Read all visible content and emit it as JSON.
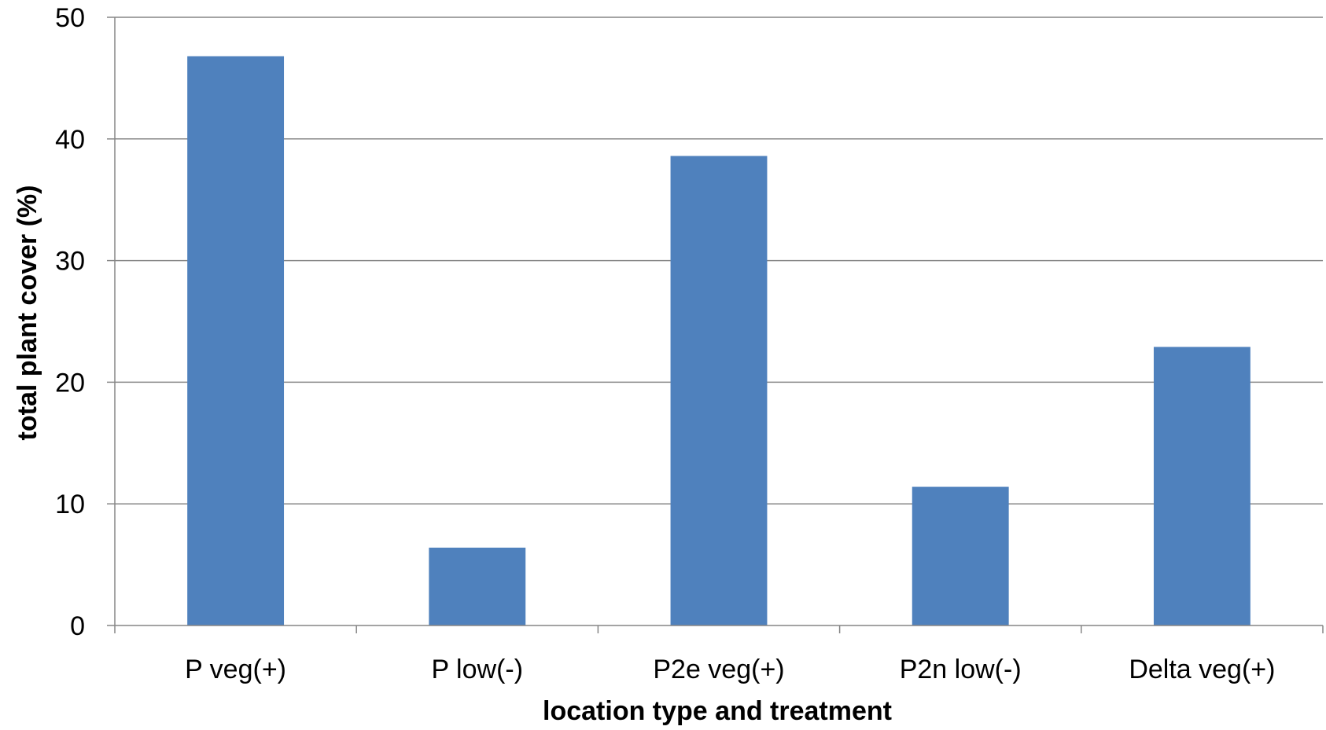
{
  "chart_data": {
    "type": "bar",
    "title": "",
    "xlabel": "location type and treatment",
    "ylabel": "total plant cover (%)",
    "categories": [
      "P veg(+)",
      "P low(-)",
      "P2e veg(+)",
      "P2n low(-)",
      "Delta veg(+)"
    ],
    "values": [
      46.8,
      6.4,
      38.6,
      11.4,
      22.9
    ],
    "ylim": [
      0,
      50
    ],
    "yticks": [
      0,
      10,
      20,
      30,
      40,
      50
    ],
    "ytick_labels": [
      "0",
      "10",
      "20",
      "30",
      "40",
      "50"
    ],
    "grid": true,
    "legend": "none",
    "colors": {
      "bar": "#4F81BD",
      "grid": "#868686",
      "axis": "#868686"
    }
  }
}
